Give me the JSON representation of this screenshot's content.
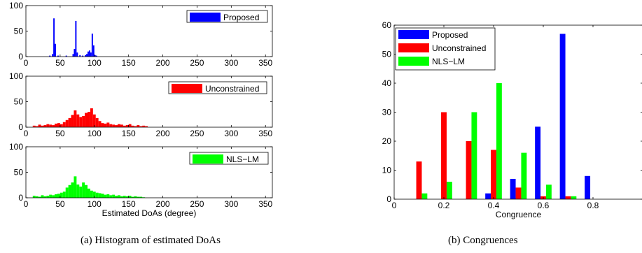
{
  "captions": {
    "a": "(a)  Histogram of estimated DoAs",
    "b": "(b)  Congruences"
  },
  "chart_data": [
    {
      "type": "bar",
      "panel": "a-top",
      "xlim": [
        0,
        360
      ],
      "ylim": [
        0,
        100
      ],
      "xticks": [
        0,
        50,
        100,
        150,
        200,
        250,
        300,
        350
      ],
      "yticks": [
        0,
        50,
        100
      ],
      "xlabel": "",
      "legend": {
        "label": "Proposed",
        "position": "top-right"
      },
      "color": "#0000ff",
      "bin_width": 2,
      "bins": [
        {
          "x": 35,
          "y": 2
        },
        {
          "x": 39,
          "y": 5
        },
        {
          "x": 41,
          "y": 75
        },
        {
          "x": 43,
          "y": 25
        },
        {
          "x": 47,
          "y": 2
        },
        {
          "x": 59,
          "y": 2
        },
        {
          "x": 69,
          "y": 5
        },
        {
          "x": 71,
          "y": 15
        },
        {
          "x": 73,
          "y": 70
        },
        {
          "x": 75,
          "y": 8
        },
        {
          "x": 79,
          "y": 3
        },
        {
          "x": 83,
          "y": 2
        },
        {
          "x": 87,
          "y": 3
        },
        {
          "x": 89,
          "y": 5
        },
        {
          "x": 91,
          "y": 10
        },
        {
          "x": 93,
          "y": 12
        },
        {
          "x": 95,
          "y": 8
        },
        {
          "x": 97,
          "y": 45
        },
        {
          "x": 99,
          "y": 22
        },
        {
          "x": 101,
          "y": 3
        },
        {
          "x": 103,
          "y": 2
        }
      ]
    },
    {
      "type": "bar",
      "panel": "a-middle",
      "xlim": [
        0,
        360
      ],
      "ylim": [
        0,
        100
      ],
      "xticks": [
        0,
        50,
        100,
        150,
        200,
        250,
        300,
        350
      ],
      "yticks": [
        0,
        50,
        100
      ],
      "xlabel": "",
      "legend": {
        "label": "Unconstrained",
        "position": "top-right"
      },
      "color": "#ff0000",
      "bin_width": 4,
      "bins": [
        {
          "x": 12,
          "y": 3
        },
        {
          "x": 16,
          "y": 2
        },
        {
          "x": 20,
          "y": 5
        },
        {
          "x": 24,
          "y": 3
        },
        {
          "x": 28,
          "y": 4
        },
        {
          "x": 32,
          "y": 6
        },
        {
          "x": 36,
          "y": 5
        },
        {
          "x": 40,
          "y": 4
        },
        {
          "x": 44,
          "y": 7
        },
        {
          "x": 48,
          "y": 8
        },
        {
          "x": 52,
          "y": 6
        },
        {
          "x": 56,
          "y": 10
        },
        {
          "x": 60,
          "y": 14
        },
        {
          "x": 64,
          "y": 18
        },
        {
          "x": 68,
          "y": 24
        },
        {
          "x": 72,
          "y": 33
        },
        {
          "x": 76,
          "y": 25
        },
        {
          "x": 80,
          "y": 20
        },
        {
          "x": 84,
          "y": 22
        },
        {
          "x": 88,
          "y": 28
        },
        {
          "x": 92,
          "y": 30
        },
        {
          "x": 96,
          "y": 37
        },
        {
          "x": 100,
          "y": 25
        },
        {
          "x": 104,
          "y": 18
        },
        {
          "x": 108,
          "y": 12
        },
        {
          "x": 112,
          "y": 8
        },
        {
          "x": 116,
          "y": 7
        },
        {
          "x": 120,
          "y": 9
        },
        {
          "x": 124,
          "y": 6
        },
        {
          "x": 128,
          "y": 5
        },
        {
          "x": 132,
          "y": 4
        },
        {
          "x": 136,
          "y": 6
        },
        {
          "x": 140,
          "y": 5
        },
        {
          "x": 144,
          "y": 3
        },
        {
          "x": 148,
          "y": 4
        },
        {
          "x": 152,
          "y": 6
        },
        {
          "x": 156,
          "y": 3
        },
        {
          "x": 160,
          "y": 2
        },
        {
          "x": 164,
          "y": 4
        },
        {
          "x": 168,
          "y": 2
        },
        {
          "x": 172,
          "y": 3
        },
        {
          "x": 176,
          "y": 2
        }
      ]
    },
    {
      "type": "bar",
      "panel": "a-bottom",
      "xlim": [
        0,
        360
      ],
      "ylim": [
        0,
        100
      ],
      "xticks": [
        0,
        50,
        100,
        150,
        200,
        250,
        300,
        350
      ],
      "yticks": [
        0,
        50,
        100
      ],
      "xlabel": "Estimated DoAs (degree)",
      "legend": {
        "label": "NLS−LM",
        "position": "top-right"
      },
      "color": "#00ff00",
      "bin_width": 4,
      "bins": [
        {
          "x": 12,
          "y": 4
        },
        {
          "x": 16,
          "y": 3
        },
        {
          "x": 20,
          "y": 2
        },
        {
          "x": 24,
          "y": 5
        },
        {
          "x": 28,
          "y": 3
        },
        {
          "x": 32,
          "y": 4
        },
        {
          "x": 36,
          "y": 6
        },
        {
          "x": 40,
          "y": 5
        },
        {
          "x": 44,
          "y": 7
        },
        {
          "x": 48,
          "y": 8
        },
        {
          "x": 52,
          "y": 10
        },
        {
          "x": 56,
          "y": 12
        },
        {
          "x": 60,
          "y": 20
        },
        {
          "x": 64,
          "y": 25
        },
        {
          "x": 68,
          "y": 30
        },
        {
          "x": 72,
          "y": 42
        },
        {
          "x": 76,
          "y": 26
        },
        {
          "x": 80,
          "y": 22
        },
        {
          "x": 84,
          "y": 30
        },
        {
          "x": 88,
          "y": 25
        },
        {
          "x": 92,
          "y": 18
        },
        {
          "x": 96,
          "y": 14
        },
        {
          "x": 100,
          "y": 12
        },
        {
          "x": 104,
          "y": 10
        },
        {
          "x": 108,
          "y": 9
        },
        {
          "x": 112,
          "y": 8
        },
        {
          "x": 116,
          "y": 6
        },
        {
          "x": 120,
          "y": 7
        },
        {
          "x": 124,
          "y": 5
        },
        {
          "x": 128,
          "y": 6
        },
        {
          "x": 132,
          "y": 4
        },
        {
          "x": 136,
          "y": 5
        },
        {
          "x": 140,
          "y": 3
        },
        {
          "x": 144,
          "y": 4
        },
        {
          "x": 148,
          "y": 3
        },
        {
          "x": 152,
          "y": 4
        },
        {
          "x": 156,
          "y": 2
        },
        {
          "x": 160,
          "y": 3
        },
        {
          "x": 164,
          "y": 2
        },
        {
          "x": 168,
          "y": 2
        },
        {
          "x": 172,
          "y": 1
        }
      ]
    },
    {
      "type": "bar",
      "panel": "b",
      "xlim": [
        0,
        1
      ],
      "ylim": [
        0,
        60
      ],
      "xticks": [
        0,
        0.2,
        0.4,
        0.6,
        0.8
      ],
      "yticks": [
        0,
        10,
        20,
        30,
        40,
        50,
        60
      ],
      "xlabel": "Congruence",
      "legend_position": "top-left",
      "group_centers": [
        0.1,
        0.2,
        0.3,
        0.4,
        0.5,
        0.6,
        0.7,
        0.8,
        0.9
      ],
      "series": [
        {
          "name": "Proposed",
          "color": "#0000ff",
          "values": [
            0,
            0,
            0,
            2,
            7,
            25,
            57,
            8,
            0
          ]
        },
        {
          "name": "Unconstrained",
          "color": "#ff0000",
          "values": [
            13,
            30,
            20,
            17,
            4,
            1,
            1,
            0,
            0
          ]
        },
        {
          "name": "NLS−LM",
          "color": "#00ff00",
          "values": [
            2,
            6,
            30,
            40,
            16,
            5,
            1,
            0,
            0
          ]
        }
      ]
    }
  ]
}
